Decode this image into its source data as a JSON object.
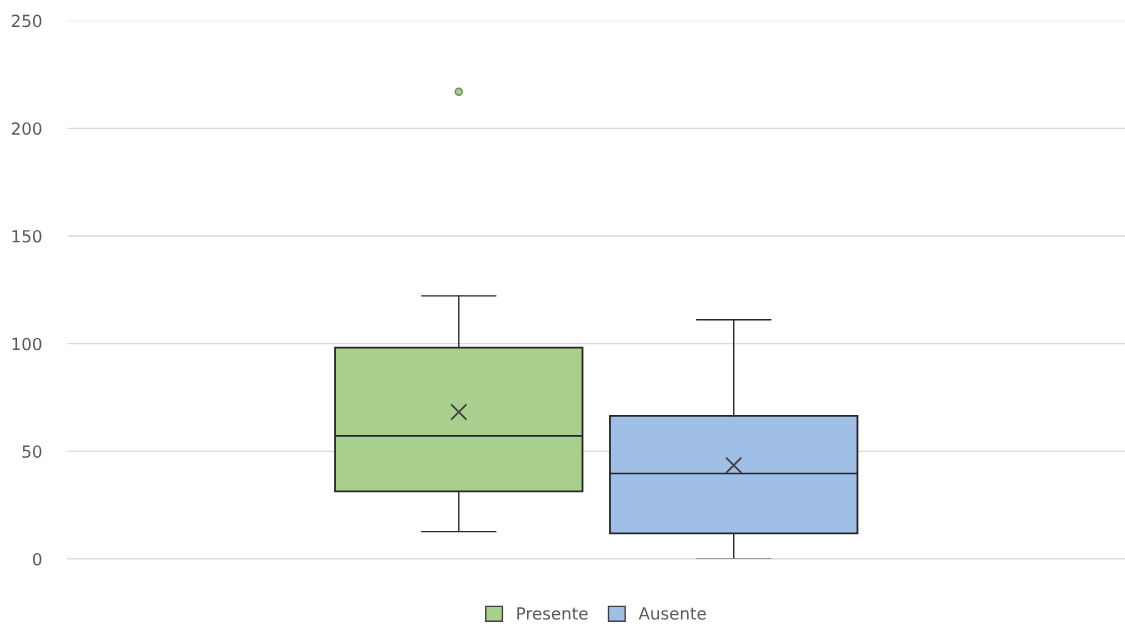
{
  "chart_data": {
    "type": "box",
    "categories": [
      null
    ],
    "ylim": [
      0,
      250
    ],
    "yticks": [
      0,
      50,
      100,
      150,
      200,
      250
    ],
    "grid": "y",
    "legend": "bottom",
    "series": [
      {
        "name": "Presente",
        "color": "#a8cf8e",
        "boxes": [
          {
            "low": 12.7,
            "q1": 31.4,
            "median": 57.2,
            "q3": 98.2,
            "high": 122.2,
            "mean": 68.3,
            "outliers": [
              217
            ]
          }
        ]
      },
      {
        "name": "Ausente",
        "color": "#a0bfe6",
        "boxes": [
          {
            "low": 0,
            "q1": 11.9,
            "median": 39.7,
            "q3": 66.5,
            "high": 111.1,
            "mean": 43.5
          }
        ]
      }
    ]
  }
}
